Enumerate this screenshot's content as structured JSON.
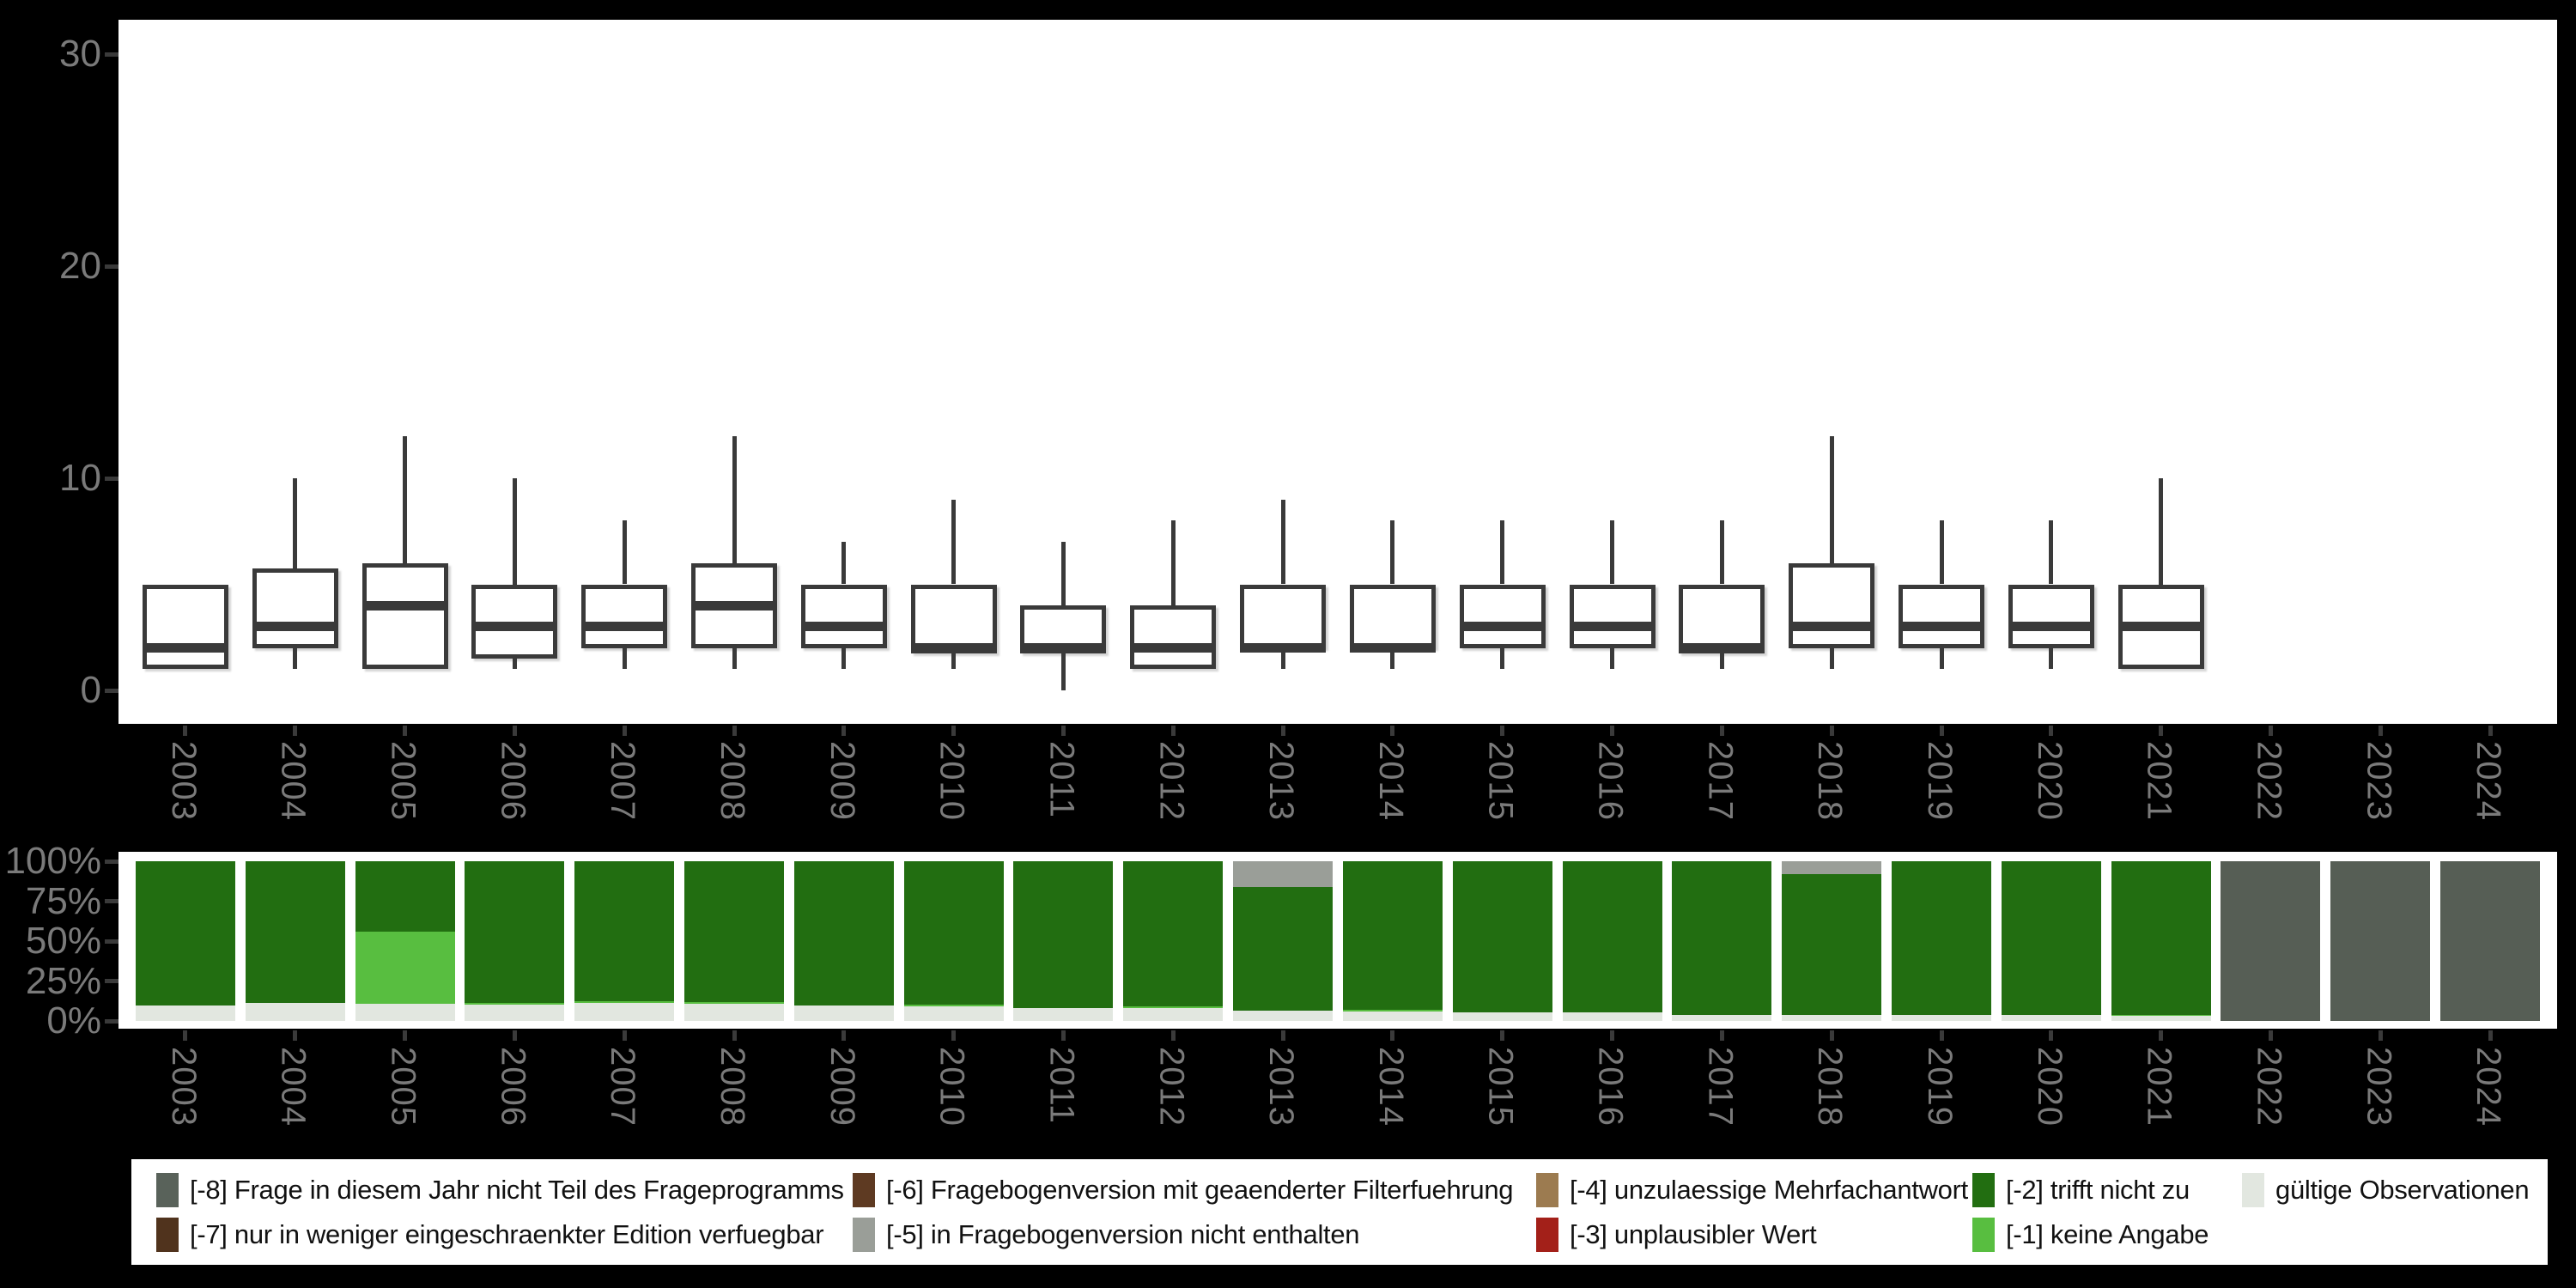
{
  "colors": {
    "background": "#000000",
    "panel": "#ffffff",
    "box_stroke": "#3a3a3a",
    "tick_mark": "#3a3a3a",
    "tick_label": "#7a7a7a",
    "legend_text": "#111111"
  },
  "chart_data": [
    {
      "type": "boxplot",
      "title": "",
      "xlabel": "",
      "ylabel": "",
      "grid": false,
      "categories": [
        "2003",
        "2004",
        "2005",
        "2006",
        "2007",
        "2008",
        "2009",
        "2010",
        "2011",
        "2012",
        "2013",
        "2014",
        "2015",
        "2016",
        "2017",
        "2018",
        "2019",
        "2020",
        "2021",
        "2022",
        "2023",
        "2024"
      ],
      "yticks": [
        0,
        10,
        20,
        30
      ],
      "ylim": [
        -1.6,
        31.6
      ],
      "boxes": [
        {
          "year": "2003",
          "min": null,
          "q1": 1,
          "median": 2,
          "q3": 5,
          "max": null
        },
        {
          "year": "2004",
          "min": 1,
          "q1": 2,
          "median": 3,
          "q3": 5.75,
          "max": 10
        },
        {
          "year": "2005",
          "min": null,
          "q1": 1,
          "median": 4,
          "q3": 6,
          "max": 12
        },
        {
          "year": "2006",
          "min": 1,
          "q1": 1.5,
          "median": 3,
          "q3": 5,
          "max": 10
        },
        {
          "year": "2007",
          "min": 1,
          "q1": 2,
          "median": 3,
          "q3": 5,
          "max": 8
        },
        {
          "year": "2008",
          "min": 1,
          "q1": 2,
          "median": 4,
          "q3": 6,
          "max": 12
        },
        {
          "year": "2009",
          "min": 1,
          "q1": 2,
          "median": 3,
          "q3": 5,
          "max": 7
        },
        {
          "year": "2010",
          "min": 1,
          "q1": 1.75,
          "median": 2,
          "q3": 5,
          "max": 9
        },
        {
          "year": "2011",
          "min": 0,
          "q1": 1.75,
          "median": 2,
          "q3": 4,
          "max": 7
        },
        {
          "year": "2012",
          "min": null,
          "q1": 1,
          "median": 2,
          "q3": 4,
          "max": 8
        },
        {
          "year": "2013",
          "min": 1,
          "q1": 2,
          "median": 2,
          "q3": 5,
          "max": 9
        },
        {
          "year": "2014",
          "min": 1,
          "q1": 2,
          "median": 2,
          "q3": 5,
          "max": 8
        },
        {
          "year": "2015",
          "min": 1,
          "q1": 2,
          "median": 3,
          "q3": 5,
          "max": 8
        },
        {
          "year": "2016",
          "min": 1,
          "q1": 2,
          "median": 3,
          "q3": 5,
          "max": 8
        },
        {
          "year": "2017",
          "min": 1,
          "q1": 1.75,
          "median": 2,
          "q3": 5,
          "max": 8
        },
        {
          "year": "2018",
          "min": 1,
          "q1": 2,
          "median": 3,
          "q3": 6,
          "max": 12
        },
        {
          "year": "2019",
          "min": 1,
          "q1": 2,
          "median": 3,
          "q3": 5,
          "max": 8
        },
        {
          "year": "2020",
          "min": 1,
          "q1": 2,
          "median": 3,
          "q3": 5,
          "max": 8
        },
        {
          "year": "2021",
          "min": null,
          "q1": 1,
          "median": 3,
          "q3": 5,
          "max": 10
        }
      ]
    },
    {
      "type": "bar",
      "stacked": true,
      "unit": "percent",
      "title": "",
      "xlabel": "",
      "ylabel": "",
      "categories": [
        "2003",
        "2004",
        "2005",
        "2006",
        "2007",
        "2008",
        "2009",
        "2010",
        "2011",
        "2012",
        "2013",
        "2014",
        "2015",
        "2016",
        "2017",
        "2018",
        "2019",
        "2020",
        "2021",
        "2022",
        "2023",
        "2024"
      ],
      "yticks": [
        "0%",
        "25%",
        "50%",
        "75%",
        "100%"
      ],
      "ylim": [
        0,
        100
      ],
      "series": [
        {
          "key": "valid",
          "name": "gültige Observationen",
          "color": "#e2e7e0",
          "values": [
            9.5,
            11.5,
            10.5,
            10,
            11.5,
            11,
            9.5,
            9,
            8,
            8,
            6.5,
            6,
            5.5,
            5.5,
            4,
            4,
            4,
            3.5,
            3,
            0,
            0,
            0
          ]
        },
        {
          "key": "m1",
          "name": "[-1] keine Angabe",
          "color": "#58be40",
          "values": [
            0,
            0,
            45.5,
            1.5,
            1,
            1,
            0,
            1,
            0,
            1,
            0,
            1,
            0,
            0,
            0,
            0,
            0,
            0,
            1,
            0,
            0,
            0
          ]
        },
        {
          "key": "m2",
          "name": "[-2] trifft nicht zu",
          "color": "#226e11",
          "values": [
            90.5,
            88.5,
            44,
            88.5,
            87.5,
            88,
            90.5,
            90,
            92,
            91,
            77.5,
            93,
            94.5,
            94.5,
            96,
            88,
            96,
            96.5,
            96,
            0,
            0,
            0
          ]
        },
        {
          "key": "m5",
          "name": "[-5] in Fragebogenversion nicht enthalten",
          "color": "#9a9e98",
          "values": [
            0,
            0,
            0,
            0,
            0,
            0,
            0,
            0,
            0,
            0,
            16,
            0,
            0,
            0,
            0,
            8,
            0,
            0,
            0,
            0,
            0,
            0
          ]
        },
        {
          "key": "m8",
          "name": "[-8] Frage in diesem Jahr nicht Teil des Frageprogramms",
          "color": "#565e55",
          "values": [
            0,
            0,
            0,
            0,
            0,
            0,
            0,
            0,
            0,
            0,
            0,
            0,
            0,
            0,
            0,
            0,
            0,
            0,
            0,
            100,
            100,
            100
          ]
        }
      ],
      "legend": {
        "position": "bottom",
        "entries": [
          {
            "key": "m8",
            "label": "[-8] Frage in diesem Jahr nicht Teil des Frageprogramms",
            "color": "#59625a"
          },
          {
            "key": "m7",
            "label": "[-7] nur in weniger eingeschraenkter Edition verfuegbar",
            "color": "#50331d"
          },
          {
            "key": "m6",
            "label": "[-6] Fragebogenversion mit geaenderter Filterfuehrung",
            "color": "#5e3a22"
          },
          {
            "key": "m5",
            "label": "[-5] in Fragebogenversion nicht enthalten",
            "color": "#9a9e98"
          },
          {
            "key": "m4",
            "label": "[-4] unzulaessige Mehrfachantwort",
            "color": "#9c7b50"
          },
          {
            "key": "m3",
            "label": "[-3] unplausibler Wert",
            "color": "#a32019"
          },
          {
            "key": "m2",
            "label": "[-2] trifft nicht zu",
            "color": "#226e11"
          },
          {
            "key": "m1",
            "label": "[-1] keine Angabe",
            "color": "#58be40"
          },
          {
            "key": "valid",
            "label": "gültige Observationen",
            "color": "#e2e7e0"
          }
        ],
        "rows": [
          [
            "m8",
            "m6",
            "m4",
            "m2",
            "valid"
          ],
          [
            "m7",
            "m5",
            "m3",
            "m1"
          ]
        ]
      }
    }
  ]
}
